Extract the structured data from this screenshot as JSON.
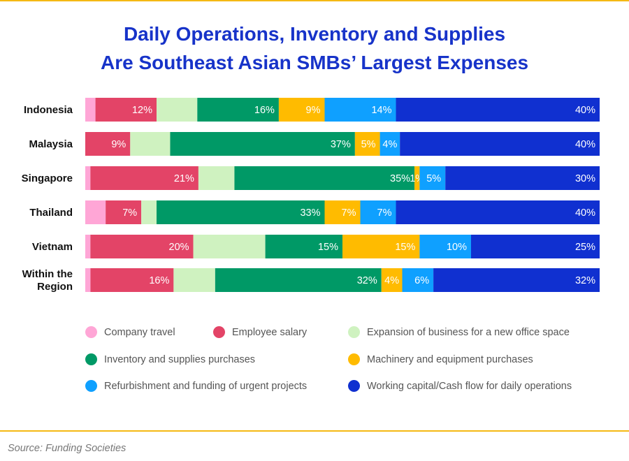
{
  "chart_data": {
    "type": "bar",
    "orientation": "horizontal",
    "stacked": true,
    "title": "Daily Operations, Inventory and Supplies Are Southeast Asian SMBs’ Largest Expenses",
    "title_lines": [
      "Daily Operations, Inventory and Supplies",
      "Are Southeast Asian SMBs’ Largest Expenses"
    ],
    "categories": [
      "Indonesia",
      "Malaysia",
      "Singapore",
      "Thailand",
      "Vietnam",
      "Within the Region"
    ],
    "category_lines": [
      [
        "Indonesia"
      ],
      [
        "Malaysia"
      ],
      [
        "Singapore"
      ],
      [
        "Thailand"
      ],
      [
        "Vietnam"
      ],
      [
        "Within the",
        "Region"
      ]
    ],
    "unit": "%",
    "series": [
      {
        "name": "Company travel",
        "color": "#ffa6d6",
        "labeled": false,
        "values": [
          2,
          0,
          1,
          4,
          1,
          1
        ]
      },
      {
        "name": "Employee salary",
        "color": "#e34467",
        "labeled": true,
        "values": [
          12,
          9,
          21,
          7,
          20,
          16
        ]
      },
      {
        "name": "Expansion of business for a new office space",
        "color": "#cff2c0",
        "labeled": false,
        "values": [
          8,
          8,
          7,
          3,
          14,
          8
        ]
      },
      {
        "name": "Inventory and supplies purchases",
        "color": "#009966",
        "labeled": true,
        "values": [
          16,
          37,
          35,
          33,
          15,
          32
        ]
      },
      {
        "name": "Machinery and equipment purchases",
        "color": "#ffbb00",
        "labeled": true,
        "values": [
          9,
          5,
          1,
          7,
          15,
          4
        ]
      },
      {
        "name": "Refurbishment and funding of urgent projects",
        "color": "#0fa0ff",
        "labeled": true,
        "values": [
          14,
          4,
          5,
          7,
          10,
          6
        ]
      },
      {
        "name": "Working capital/Cash flow for daily operations",
        "color": "#1030d0",
        "labeled": true,
        "values": [
          40,
          40,
          30,
          40,
          25,
          32
        ]
      }
    ],
    "legend_position": "bottom",
    "grid": false,
    "source": "Source: Funding Societies"
  }
}
